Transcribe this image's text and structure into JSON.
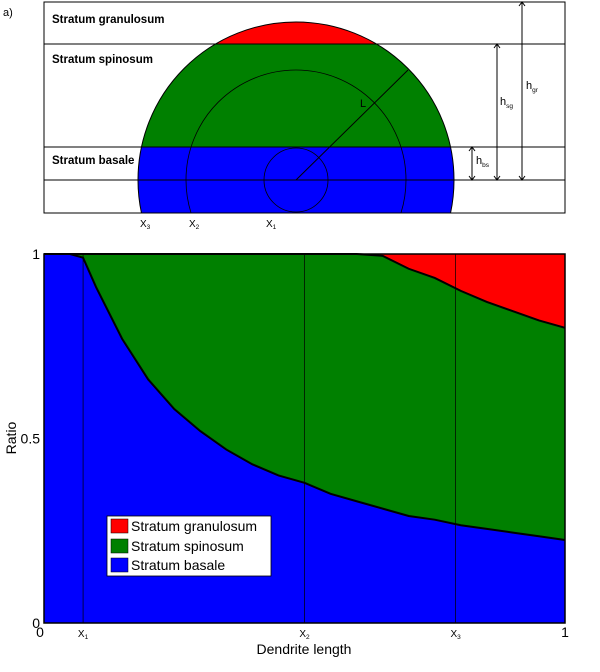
{
  "panel_a": {
    "label": "a)",
    "layers": [
      "Stratum granulosum",
      "Stratum spinosum",
      "Stratum basale"
    ],
    "radius_label": "L",
    "height_labels": [
      {
        "main": "h",
        "sub": "bs"
      },
      {
        "main": "h",
        "sub": "sg"
      },
      {
        "main": "h",
        "sub": "gr"
      }
    ],
    "x_markers": [
      {
        "main": "X",
        "sub": "3"
      },
      {
        "main": "X",
        "sub": "2"
      },
      {
        "main": "X",
        "sub": "1"
      }
    ],
    "colors": {
      "granulosum": "#ff0000",
      "spinosum": "#008000",
      "basale": "#0000ff"
    }
  },
  "chart_data": {
    "type": "area",
    "stacked": true,
    "xlabel": "Dendrite length",
    "ylabel": "Ratio",
    "xlim": [
      0,
      1
    ],
    "ylim": [
      0,
      1
    ],
    "x_tick_labels": [
      "0",
      "1"
    ],
    "y_tick_labels": [
      "0",
      "0.5",
      "1"
    ],
    "vertical_markers": [
      {
        "label": "X",
        "sub": "1",
        "x": 0.075
      },
      {
        "label": "X",
        "sub": "2",
        "x": 0.5
      },
      {
        "label": "X",
        "sub": "3",
        "x": 0.79
      }
    ],
    "legend_position": "bottom-left",
    "x": [
      0,
      0.05,
      0.075,
      0.1,
      0.15,
      0.2,
      0.25,
      0.3,
      0.35,
      0.4,
      0.45,
      0.5,
      0.55,
      0.6,
      0.65,
      0.7,
      0.75,
      0.8,
      0.85,
      0.9,
      0.95,
      1.0
    ],
    "series": [
      {
        "name": "Stratum basale",
        "color": "#0000ff",
        "values": [
          1.0,
          1.0,
          0.99,
          0.91,
          0.77,
          0.66,
          0.58,
          0.52,
          0.47,
          0.43,
          0.4,
          0.38,
          0.35,
          0.33,
          0.31,
          0.29,
          0.28,
          0.265,
          0.255,
          0.245,
          0.235,
          0.225
        ]
      },
      {
        "name": "Stratum spinosum",
        "color": "#008000",
        "values": [
          0.0,
          0.0,
          0.01,
          0.09,
          0.23,
          0.34,
          0.42,
          0.48,
          0.53,
          0.57,
          0.6,
          0.62,
          0.65,
          0.67,
          0.685,
          0.67,
          0.655,
          0.635,
          0.615,
          0.6,
          0.585,
          0.575
        ]
      },
      {
        "name": "Stratum granulosum",
        "color": "#ff0000",
        "values": [
          0.0,
          0.0,
          0.0,
          0.0,
          0.0,
          0.0,
          0.0,
          0.0,
          0.0,
          0.0,
          0.0,
          0.0,
          0.0,
          0.0,
          0.005,
          0.04,
          0.065,
          0.1,
          0.13,
          0.155,
          0.18,
          0.2
        ]
      }
    ]
  }
}
